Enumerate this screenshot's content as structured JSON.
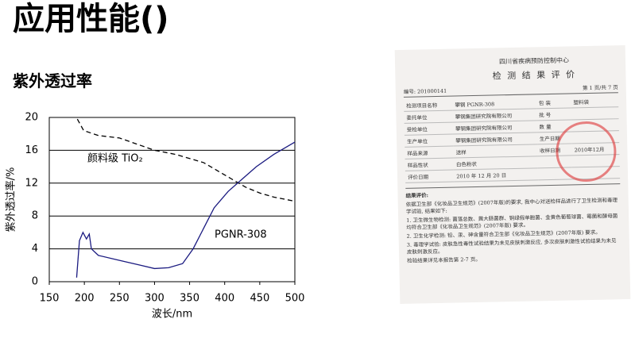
{
  "slide": {
    "title": "应用性能()",
    "subtitle": "紫外透过率"
  },
  "chart_data": {
    "type": "line",
    "xlabel": "波长/nm",
    "ylabel": "紫外透过率/%",
    "xlim": [
      150,
      500
    ],
    "ylim": [
      0,
      20
    ],
    "xticks": [
      150,
      200,
      250,
      300,
      350,
      400,
      450,
      500
    ],
    "yticks": [
      0,
      4,
      8,
      12,
      16,
      20
    ],
    "grid": true,
    "series": [
      {
        "name": "颜料级 TiO₂",
        "color": "#000000",
        "dash": true,
        "x": [
          190,
          199,
          220,
          250,
          280,
          300,
          330,
          350,
          370,
          390,
          410,
          430,
          450,
          470,
          500
        ],
        "values": [
          19.8,
          18.4,
          17.8,
          17.5,
          16.6,
          16,
          15.5,
          15,
          14.5,
          13.5,
          12.5,
          11.5,
          10.8,
          10.3,
          9.8
        ]
      },
      {
        "name": "PGNR-308",
        "color": "#1a1a80",
        "dash": false,
        "x": [
          189,
          193,
          198,
          203,
          207,
          210,
          220,
          250,
          280,
          300,
          320,
          340,
          355,
          370,
          385,
          405,
          425,
          445,
          470,
          500
        ],
        "values": [
          0.5,
          5,
          6,
          5.2,
          5.8,
          4,
          3.2,
          2.6,
          2,
          1.6,
          1.7,
          2.2,
          4,
          6.5,
          9,
          11,
          12.5,
          14,
          15.5,
          17
        ]
      }
    ]
  },
  "document": {
    "org": "四川省疾病预防控制中心",
    "title": "检 测 结 果 评 价",
    "number": "编号: 201000141",
    "page": "第 1 页/共 7 页",
    "rows": [
      [
        "检测项目名称",
        "攀钢 PGNR-308"
      ],
      [
        "委托单位",
        "攀钢集团研究院有限公司"
      ],
      [
        "受检单位",
        "攀钢集团研究院有限公司"
      ],
      [
        "生产单位",
        "攀钢集团研究院有限公司"
      ],
      [
        "样品来源",
        "送样"
      ],
      [
        "样品性状",
        "白色粉状"
      ],
      [
        "评价日期",
        "2010 年 12 月 20 日"
      ]
    ],
    "side": [
      [
        "包    装",
        "塑料袋"
      ],
      [
        "批    号",
        ""
      ],
      [
        "数    量",
        ""
      ],
      [
        "生产日期",
        ""
      ],
      [
        "收样日期",
        "2010年12月"
      ]
    ],
    "conclusion_title": "结果评价:",
    "paragraphs": [
      "依据卫生部《化妆品卫生规范》(2007年版)的要求, 我中心对送检样品进行了卫生检测和毒理学试验, 结果如下:",
      "1. 卫生微生物检测: 菌落总数、粪大肠菌群、铜绿假单胞菌、金黄色葡萄球菌、霉菌和酵母菌均符合卫生部《化妆品卫生规范》(2007年版) 要求。",
      "2. 卫生化学检测: 铅、汞、砷含量符合卫生部《化妆品卫生规范》(2007年版) 要求。",
      "3. 毒理学试验: 皮肤急性毒性试验结果为未见皮肤刺激反应, 多次皮肤刺激性试验结果为未见皮肤刺激反应。",
      "检验结果详见本报告第 2-7 页。"
    ]
  }
}
